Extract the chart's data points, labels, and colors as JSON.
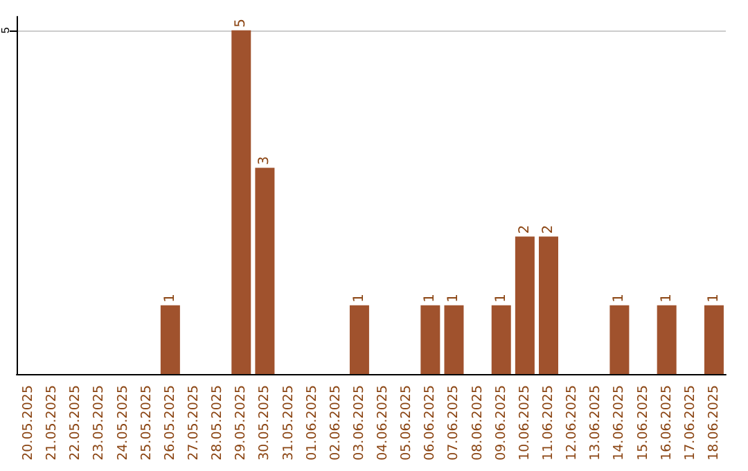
{
  "chart_data": {
    "type": "bar",
    "categories": [
      "20.05.2025",
      "21.05.2025",
      "22.05.2025",
      "23.05.2025",
      "24.05.2025",
      "25.05.2025",
      "26.05.2025",
      "27.05.2025",
      "28.05.2025",
      "29.05.2025",
      "30.05.2025",
      "31.05.2025",
      "01.06.2025",
      "02.06.2025",
      "03.06.2025",
      "04.06.2025",
      "05.06.2025",
      "06.06.2025",
      "07.06.2025",
      "08.06.2025",
      "09.06.2025",
      "10.06.2025",
      "11.06.2025",
      "12.06.2025",
      "13.06.2025",
      "14.06.2025",
      "15.06.2025",
      "16.06.2025",
      "17.06.2025",
      "18.06.2025"
    ],
    "values": [
      0,
      0,
      0,
      0,
      0,
      0,
      1,
      0,
      0,
      5,
      3,
      0,
      0,
      0,
      1,
      0,
      0,
      1,
      1,
      0,
      1,
      2,
      2,
      0,
      0,
      1,
      0,
      1,
      0,
      1
    ],
    "value_labels": [
      null,
      null,
      null,
      null,
      null,
      null,
      "1",
      null,
      null,
      "5",
      "3",
      null,
      null,
      null,
      "1",
      null,
      null,
      "1",
      "1",
      null,
      "1",
      "2",
      "2",
      null,
      null,
      "1",
      null,
      "1",
      null,
      "1"
    ],
    "color": "#a0522d",
    "ylim": [
      0,
      5.2
    ],
    "yticks": [
      5
    ],
    "grid": "y"
  }
}
